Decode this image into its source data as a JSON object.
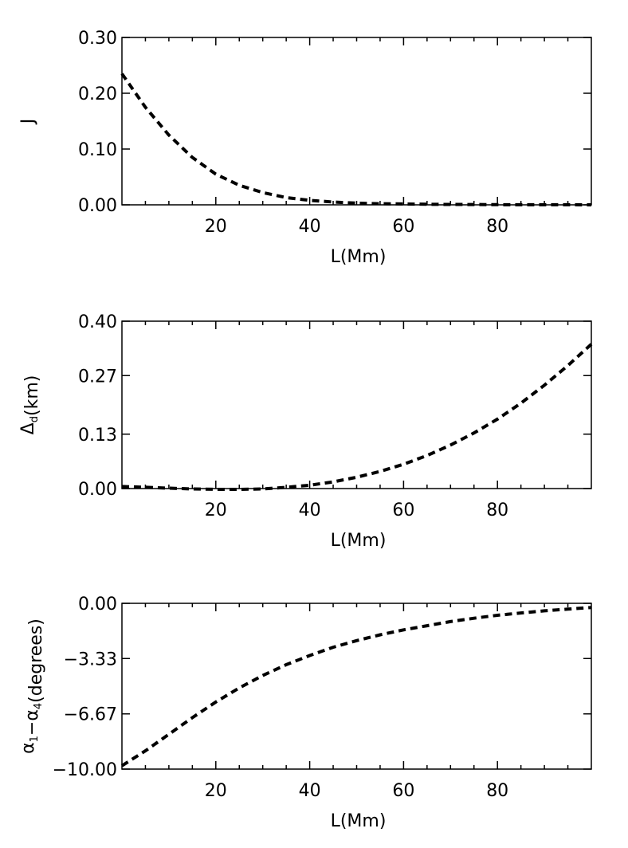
{
  "chart_data": [
    {
      "type": "line",
      "xlabel": "L(Mm)",
      "ylabel": "J",
      "ylabel_sub": "",
      "ylabel_tail": "",
      "xlim": [
        0,
        100
      ],
      "ylim": [
        0.0,
        0.3
      ],
      "xticks": [
        20,
        40,
        60,
        80
      ],
      "xtick_labels": [
        "20",
        "40",
        "60",
        "80"
      ],
      "yticks": [
        0.0,
        0.1,
        0.2,
        0.3
      ],
      "ytick_labels": [
        "0.00",
        "0.10",
        "0.20",
        "0.30"
      ],
      "series": [
        {
          "style": "dashed",
          "x": [
            0,
            5,
            10,
            15,
            20,
            25,
            30,
            35,
            40,
            45,
            50,
            55,
            60,
            65,
            70,
            75,
            80,
            85,
            90,
            95,
            100
          ],
          "y": [
            0.235,
            0.175,
            0.125,
            0.085,
            0.055,
            0.035,
            0.022,
            0.013,
            0.008,
            0.005,
            0.003,
            0.002,
            0.0015,
            0.001,
            0.0007,
            0.0005,
            0.0003,
            0.0002,
            0.0001,
            0.0001,
            0.0
          ]
        }
      ]
    },
    {
      "type": "line",
      "xlabel": "L(Mm)",
      "ylabel": "Δ",
      "ylabel_sub": "d",
      "ylabel_tail": "(km)",
      "xlim": [
        0,
        100
      ],
      "ylim": [
        0.0,
        0.4
      ],
      "xticks": [
        20,
        40,
        60,
        80
      ],
      "xtick_labels": [
        "20",
        "40",
        "60",
        "80"
      ],
      "yticks": [
        0.0,
        0.13,
        0.27,
        0.4
      ],
      "ytick_labels": [
        "0.00",
        "0.13",
        "0.27",
        "0.40"
      ],
      "series": [
        {
          "style": "dashed",
          "x": [
            0,
            5,
            10,
            15,
            20,
            25,
            30,
            35,
            40,
            45,
            50,
            55,
            60,
            65,
            70,
            75,
            80,
            85,
            90,
            95,
            100
          ],
          "y": [
            0.005,
            0.003,
            0.001,
            -0.001,
            -0.002,
            -0.002,
            -0.001,
            0.003,
            0.008,
            0.016,
            0.027,
            0.041,
            0.058,
            0.079,
            0.104,
            0.133,
            0.166,
            0.204,
            0.247,
            0.294,
            0.345
          ]
        }
      ]
    },
    {
      "type": "line",
      "xlabel": "L(Mm)",
      "ylabel": "α",
      "ylabel_sub": "1",
      "ylabel_mid": "−α",
      "ylabel_sub2": "4",
      "ylabel_tail": "(degrees)",
      "xlim": [
        0,
        100
      ],
      "ylim": [
        -10.0,
        0.0
      ],
      "xticks": [
        20,
        40,
        60,
        80
      ],
      "xtick_labels": [
        "20",
        "40",
        "60",
        "80"
      ],
      "yticks": [
        -10.0,
        -6.67,
        -3.33,
        0.0
      ],
      "ytick_labels": [
        "−10.00",
        "−6.67",
        "−3.33",
        "0.00"
      ],
      "series": [
        {
          "style": "dashed",
          "x": [
            0,
            5,
            10,
            15,
            20,
            25,
            30,
            35,
            40,
            45,
            50,
            55,
            60,
            65,
            70,
            75,
            80,
            85,
            90,
            95,
            100
          ],
          "y": [
            -9.8,
            -8.9,
            -7.9,
            -6.9,
            -5.95,
            -5.1,
            -4.35,
            -3.7,
            -3.15,
            -2.65,
            -2.25,
            -1.9,
            -1.6,
            -1.35,
            -1.1,
            -0.9,
            -0.72,
            -0.58,
            -0.45,
            -0.35,
            -0.25
          ]
        }
      ]
    }
  ]
}
